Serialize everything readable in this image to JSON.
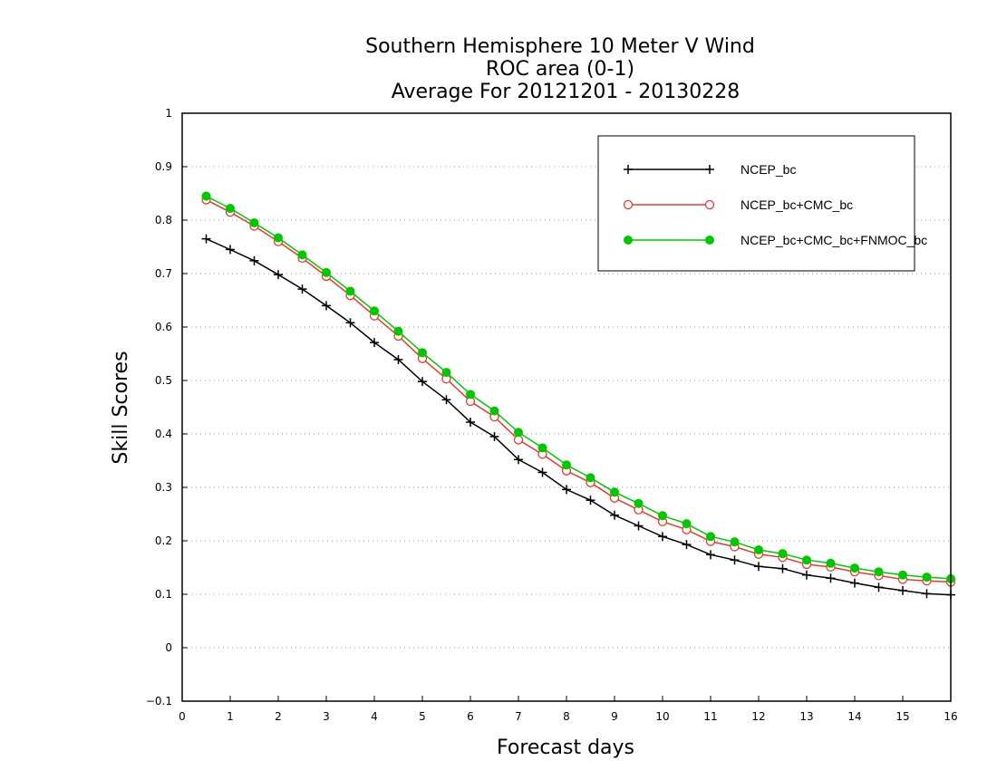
{
  "chart_data": {
    "type": "line",
    "title": [
      "Southern Hemisphere 10 Meter V Wind",
      "ROC area (0-1)",
      "Average For 20121201 - 20130228"
    ],
    "xlabel": "Forecast days",
    "ylabel": "Skill Scores",
    "xlim": [
      0,
      16
    ],
    "ylim": [
      -0.1,
      1
    ],
    "xticks": [
      0,
      1,
      2,
      3,
      4,
      5,
      6,
      7,
      8,
      9,
      10,
      11,
      12,
      13,
      14,
      15,
      16
    ],
    "yticks": [
      -0.1,
      0,
      0.1,
      0.2,
      0.3,
      0.4,
      0.5,
      0.6,
      0.7,
      0.8,
      0.9,
      1
    ],
    "ytick_labels": [
      "−0.1",
      "0",
      "0.1",
      "0.2",
      "0.3",
      "0.4",
      "0.5",
      "0.6",
      "0.7",
      "0.8",
      "0.9",
      "1"
    ],
    "grid": true,
    "legend_position": "top-right",
    "x": [
      0.5,
      1,
      1.5,
      2,
      2.5,
      3,
      3.5,
      4,
      4.5,
      5,
      5.5,
      6,
      6.5,
      7,
      7.5,
      8,
      8.5,
      9,
      9.5,
      10,
      10.5,
      11,
      11.5,
      12,
      12.5,
      13,
      13.5,
      14,
      14.5,
      15,
      15.5,
      16
    ],
    "series": [
      {
        "name": "NCEP_bc",
        "color": "#000000",
        "marker": "plus",
        "values": [
          0.765,
          0.745,
          0.724,
          0.698,
          0.671,
          0.64,
          0.608,
          0.571,
          0.539,
          0.498,
          0.464,
          0.422,
          0.395,
          0.352,
          0.328,
          0.296,
          0.276,
          0.248,
          0.228,
          0.208,
          0.193,
          0.174,
          0.164,
          0.152,
          0.148,
          0.136,
          0.13,
          0.121,
          0.113,
          0.107,
          0.101,
          0.099
        ]
      },
      {
        "name": "NCEP_bc+CMC_bc",
        "color": "#e8392f",
        "marker": "open-circle",
        "values": [
          0.838,
          0.815,
          0.789,
          0.76,
          0.729,
          0.695,
          0.659,
          0.621,
          0.583,
          0.541,
          0.503,
          0.461,
          0.432,
          0.389,
          0.362,
          0.331,
          0.309,
          0.28,
          0.258,
          0.236,
          0.221,
          0.199,
          0.189,
          0.175,
          0.169,
          0.156,
          0.151,
          0.142,
          0.135,
          0.128,
          0.125,
          0.123
        ]
      },
      {
        "name": "NCEP_bc+CMC_bc+FNMOC_bc",
        "color": "#00c800",
        "marker": "filled-circle",
        "values": [
          0.845,
          0.822,
          0.795,
          0.767,
          0.735,
          0.702,
          0.667,
          0.63,
          0.592,
          0.552,
          0.515,
          0.474,
          0.443,
          0.403,
          0.374,
          0.342,
          0.318,
          0.291,
          0.27,
          0.247,
          0.232,
          0.208,
          0.198,
          0.183,
          0.176,
          0.164,
          0.158,
          0.149,
          0.142,
          0.136,
          0.132,
          0.129
        ]
      }
    ]
  }
}
